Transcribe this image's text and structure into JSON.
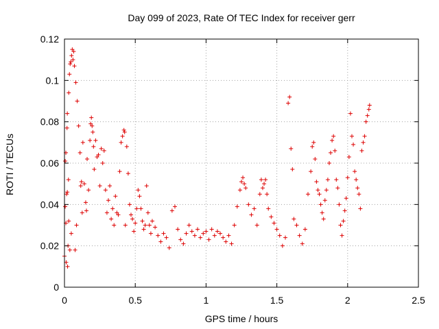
{
  "chart_data": {
    "type": "scatter",
    "title": "Day 099 of 2023, Rate Of TEC Index for receiver gerr",
    "xlabel": "GPS time / hours",
    "ylabel": "ROTI / TECUs",
    "xlim": [
      0,
      2.5
    ],
    "ylim": [
      0,
      0.12
    ],
    "x_ticks": [
      "0",
      "0.5",
      "1",
      "1.5",
      "2",
      "2.5"
    ],
    "y_ticks": [
      "0",
      "0.02",
      "0.04",
      "0.06",
      "0.08",
      "0.1",
      "0.12"
    ],
    "grid": true,
    "marker": "plus",
    "color": "#dd0000",
    "series": [
      {
        "points": [
          [
            0.0,
            0.015
          ],
          [
            0.005,
            0.039
          ],
          [
            0.005,
            0.061
          ],
          [
            0.01,
            0.065
          ],
          [
            0.01,
            0.031
          ],
          [
            0.012,
            0.012
          ],
          [
            0.015,
            0.045
          ],
          [
            0.018,
            0.077
          ],
          [
            0.02,
            0.084
          ],
          [
            0.02,
            0.046
          ],
          [
            0.022,
            0.01
          ],
          [
            0.025,
            0.02
          ],
          [
            0.028,
            0.052
          ],
          [
            0.03,
            0.094
          ],
          [
            0.03,
            0.032
          ],
          [
            0.035,
            0.103
          ],
          [
            0.038,
            0.018
          ],
          [
            0.04,
            0.108
          ],
          [
            0.045,
            0.109
          ],
          [
            0.048,
            0.026
          ],
          [
            0.05,
            0.112
          ],
          [
            0.055,
            0.115
          ],
          [
            0.06,
            0.11
          ],
          [
            0.065,
            0.114
          ],
          [
            0.07,
            0.107
          ],
          [
            0.075,
            0.018
          ],
          [
            0.08,
            0.099
          ],
          [
            0.085,
            0.03
          ],
          [
            0.09,
            0.09
          ],
          [
            0.1,
            0.078
          ],
          [
            0.11,
            0.065
          ],
          [
            0.115,
            0.049
          ],
          [
            0.12,
            0.051
          ],
          [
            0.125,
            0.036
          ],
          [
            0.13,
            0.07
          ],
          [
            0.14,
            0.05
          ],
          [
            0.15,
            0.041
          ],
          [
            0.155,
            0.037
          ],
          [
            0.16,
            0.062
          ],
          [
            0.17,
            0.047
          ],
          [
            0.18,
            0.071
          ],
          [
            0.185,
            0.079
          ],
          [
            0.19,
            0.082
          ],
          [
            0.195,
            0.078
          ],
          [
            0.2,
            0.075
          ],
          [
            0.205,
            0.068
          ],
          [
            0.21,
            0.057
          ],
          [
            0.22,
            0.071
          ],
          [
            0.23,
            0.063
          ],
          [
            0.24,
            0.064
          ],
          [
            0.25,
            0.049
          ],
          [
            0.26,
            0.067
          ],
          [
            0.27,
            0.06
          ],
          [
            0.28,
            0.066
          ],
          [
            0.29,
            0.047
          ],
          [
            0.3,
            0.036
          ],
          [
            0.31,
            0.042
          ],
          [
            0.32,
            0.049
          ],
          [
            0.33,
            0.033
          ],
          [
            0.34,
            0.038
          ],
          [
            0.35,
            0.03
          ],
          [
            0.36,
            0.044
          ],
          [
            0.37,
            0.036
          ],
          [
            0.38,
            0.035
          ],
          [
            0.39,
            0.056
          ],
          [
            0.4,
            0.07
          ],
          [
            0.41,
            0.073
          ],
          [
            0.42,
            0.076
          ],
          [
            0.425,
            0.075
          ],
          [
            0.43,
            0.03
          ],
          [
            0.44,
            0.068
          ],
          [
            0.45,
            0.055
          ],
          [
            0.46,
            0.04
          ],
          [
            0.47,
            0.035
          ],
          [
            0.48,
            0.033
          ],
          [
            0.49,
            0.027
          ],
          [
            0.5,
            0.031
          ],
          [
            0.51,
            0.038
          ],
          [
            0.52,
            0.047
          ],
          [
            0.53,
            0.044
          ],
          [
            0.54,
            0.038
          ],
          [
            0.55,
            0.032
          ],
          [
            0.56,
            0.028
          ],
          [
            0.57,
            0.03
          ],
          [
            0.58,
            0.049
          ],
          [
            0.59,
            0.036
          ],
          [
            0.6,
            0.03
          ],
          [
            0.61,
            0.026
          ],
          [
            0.62,
            0.032
          ],
          [
            0.64,
            0.029
          ],
          [
            0.66,
            0.025
          ],
          [
            0.68,
            0.022
          ],
          [
            0.7,
            0.026
          ],
          [
            0.72,
            0.024
          ],
          [
            0.74,
            0.019
          ],
          [
            0.76,
            0.037
          ],
          [
            0.78,
            0.039
          ],
          [
            0.8,
            0.028
          ],
          [
            0.82,
            0.023
          ],
          [
            0.84,
            0.021
          ],
          [
            0.86,
            0.026
          ],
          [
            0.88,
            0.03
          ],
          [
            0.9,
            0.027
          ],
          [
            0.92,
            0.025
          ],
          [
            0.94,
            0.028
          ],
          [
            0.96,
            0.024
          ],
          [
            0.98,
            0.026
          ],
          [
            1.0,
            0.027
          ],
          [
            1.02,
            0.023
          ],
          [
            1.04,
            0.028
          ],
          [
            1.06,
            0.025
          ],
          [
            1.08,
            0.027
          ],
          [
            1.1,
            0.026
          ],
          [
            1.12,
            0.024
          ],
          [
            1.14,
            0.022
          ],
          [
            1.16,
            0.025
          ],
          [
            1.18,
            0.021
          ],
          [
            1.2,
            0.03
          ],
          [
            1.22,
            0.039
          ],
          [
            1.24,
            0.047
          ],
          [
            1.25,
            0.051
          ],
          [
            1.26,
            0.053
          ],
          [
            1.27,
            0.05
          ],
          [
            1.28,
            0.048
          ],
          [
            1.3,
            0.04
          ],
          [
            1.32,
            0.035
          ],
          [
            1.34,
            0.038
          ],
          [
            1.36,
            0.03
          ],
          [
            1.38,
            0.045
          ],
          [
            1.39,
            0.052
          ],
          [
            1.4,
            0.048
          ],
          [
            1.41,
            0.05
          ],
          [
            1.42,
            0.052
          ],
          [
            1.43,
            0.045
          ],
          [
            1.44,
            0.038
          ],
          [
            1.46,
            0.034
          ],
          [
            1.48,
            0.031
          ],
          [
            1.5,
            0.028
          ],
          [
            1.52,
            0.025
          ],
          [
            1.54,
            0.02
          ],
          [
            1.56,
            0.024
          ],
          [
            1.58,
            0.089
          ],
          [
            1.59,
            0.092
          ],
          [
            1.6,
            0.067
          ],
          [
            1.61,
            0.057
          ],
          [
            1.62,
            0.033
          ],
          [
            1.64,
            0.03
          ],
          [
            1.66,
            0.025
          ],
          [
            1.68,
            0.021
          ],
          [
            1.7,
            0.028
          ],
          [
            1.72,
            0.045
          ],
          [
            1.74,
            0.056
          ],
          [
            1.75,
            0.068
          ],
          [
            1.76,
            0.07
          ],
          [
            1.77,
            0.062
          ],
          [
            1.78,
            0.051
          ],
          [
            1.79,
            0.047
          ],
          [
            1.8,
            0.045
          ],
          [
            1.81,
            0.04
          ],
          [
            1.82,
            0.036
          ],
          [
            1.83,
            0.033
          ],
          [
            1.84,
            0.042
          ],
          [
            1.85,
            0.047
          ],
          [
            1.86,
            0.052
          ],
          [
            1.87,
            0.06
          ],
          [
            1.88,
            0.065
          ],
          [
            1.89,
            0.071
          ],
          [
            1.9,
            0.073
          ],
          [
            1.91,
            0.066
          ],
          [
            1.92,
            0.052
          ],
          [
            1.93,
            0.048
          ],
          [
            1.94,
            0.04
          ],
          [
            1.95,
            0.03
          ],
          [
            1.96,
            0.025
          ],
          [
            1.97,
            0.032
          ],
          [
            1.98,
            0.037
          ],
          [
            1.99,
            0.043
          ],
          [
            2.0,
            0.053
          ],
          [
            2.01,
            0.063
          ],
          [
            2.02,
            0.084
          ],
          [
            2.03,
            0.073
          ],
          [
            2.04,
            0.069
          ],
          [
            2.05,
            0.056
          ],
          [
            2.06,
            0.052
          ],
          [
            2.07,
            0.048
          ],
          [
            2.08,
            0.045
          ],
          [
            2.09,
            0.038
          ],
          [
            2.1,
            0.066
          ],
          [
            2.11,
            0.07
          ],
          [
            2.12,
            0.073
          ],
          [
            2.13,
            0.08
          ],
          [
            2.14,
            0.083
          ],
          [
            2.15,
            0.086
          ],
          [
            2.155,
            0.088
          ]
        ]
      }
    ]
  }
}
